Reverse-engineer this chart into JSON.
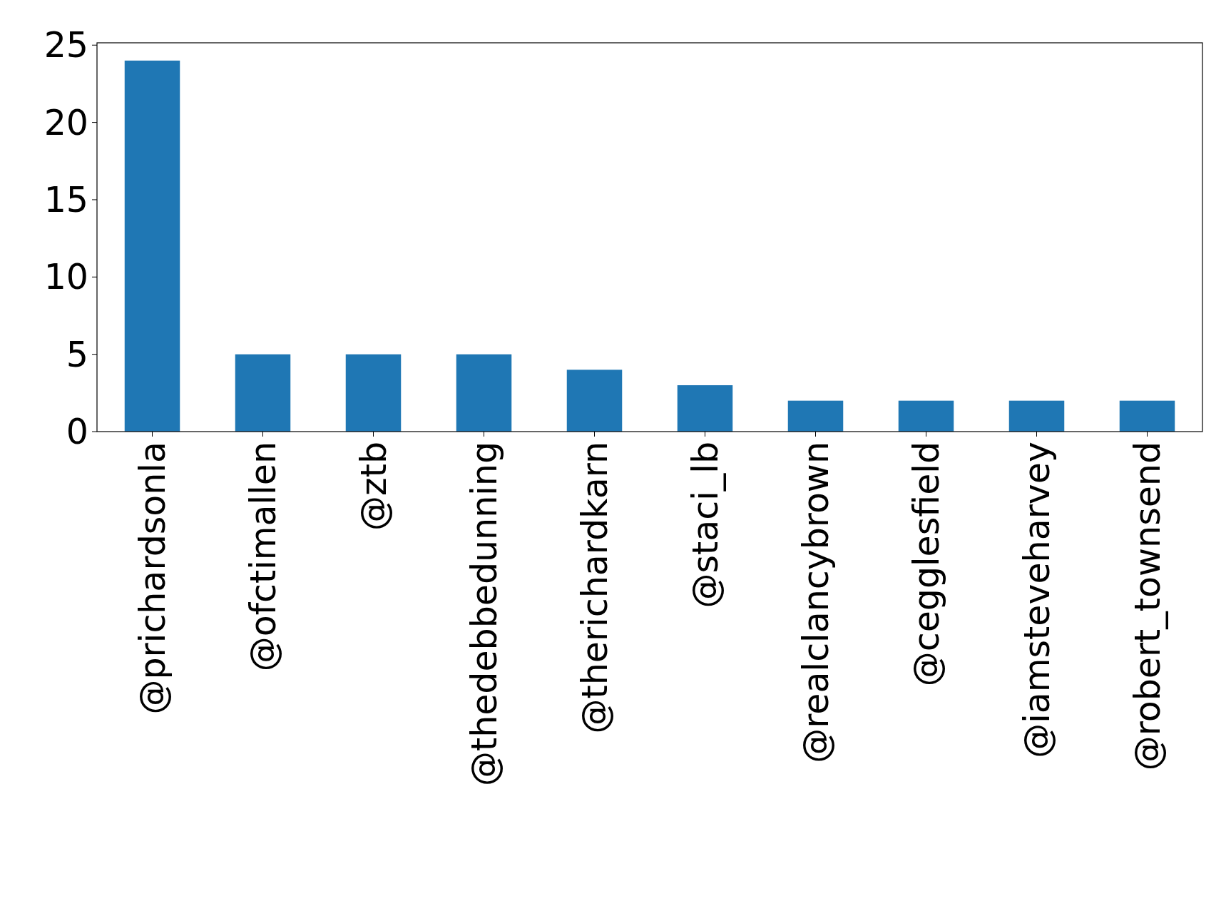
{
  "chart_data": {
    "type": "bar",
    "categories": [
      "@prichardsonla",
      "@ofctimallen",
      "@ztb",
      "@thedebbedunning",
      "@therichardkarn",
      "@staci_lb",
      "@realclancybrown",
      "@cegglesfield",
      "@iamsteveharvey",
      "@robert_townsend"
    ],
    "values": [
      24,
      5,
      5,
      5,
      4,
      3,
      2,
      2,
      2,
      2
    ],
    "color": "#1f77b4",
    "ylim": [
      0,
      25.15
    ],
    "yticks": [
      0,
      5,
      10,
      15,
      20,
      25
    ],
    "grid": false
  }
}
